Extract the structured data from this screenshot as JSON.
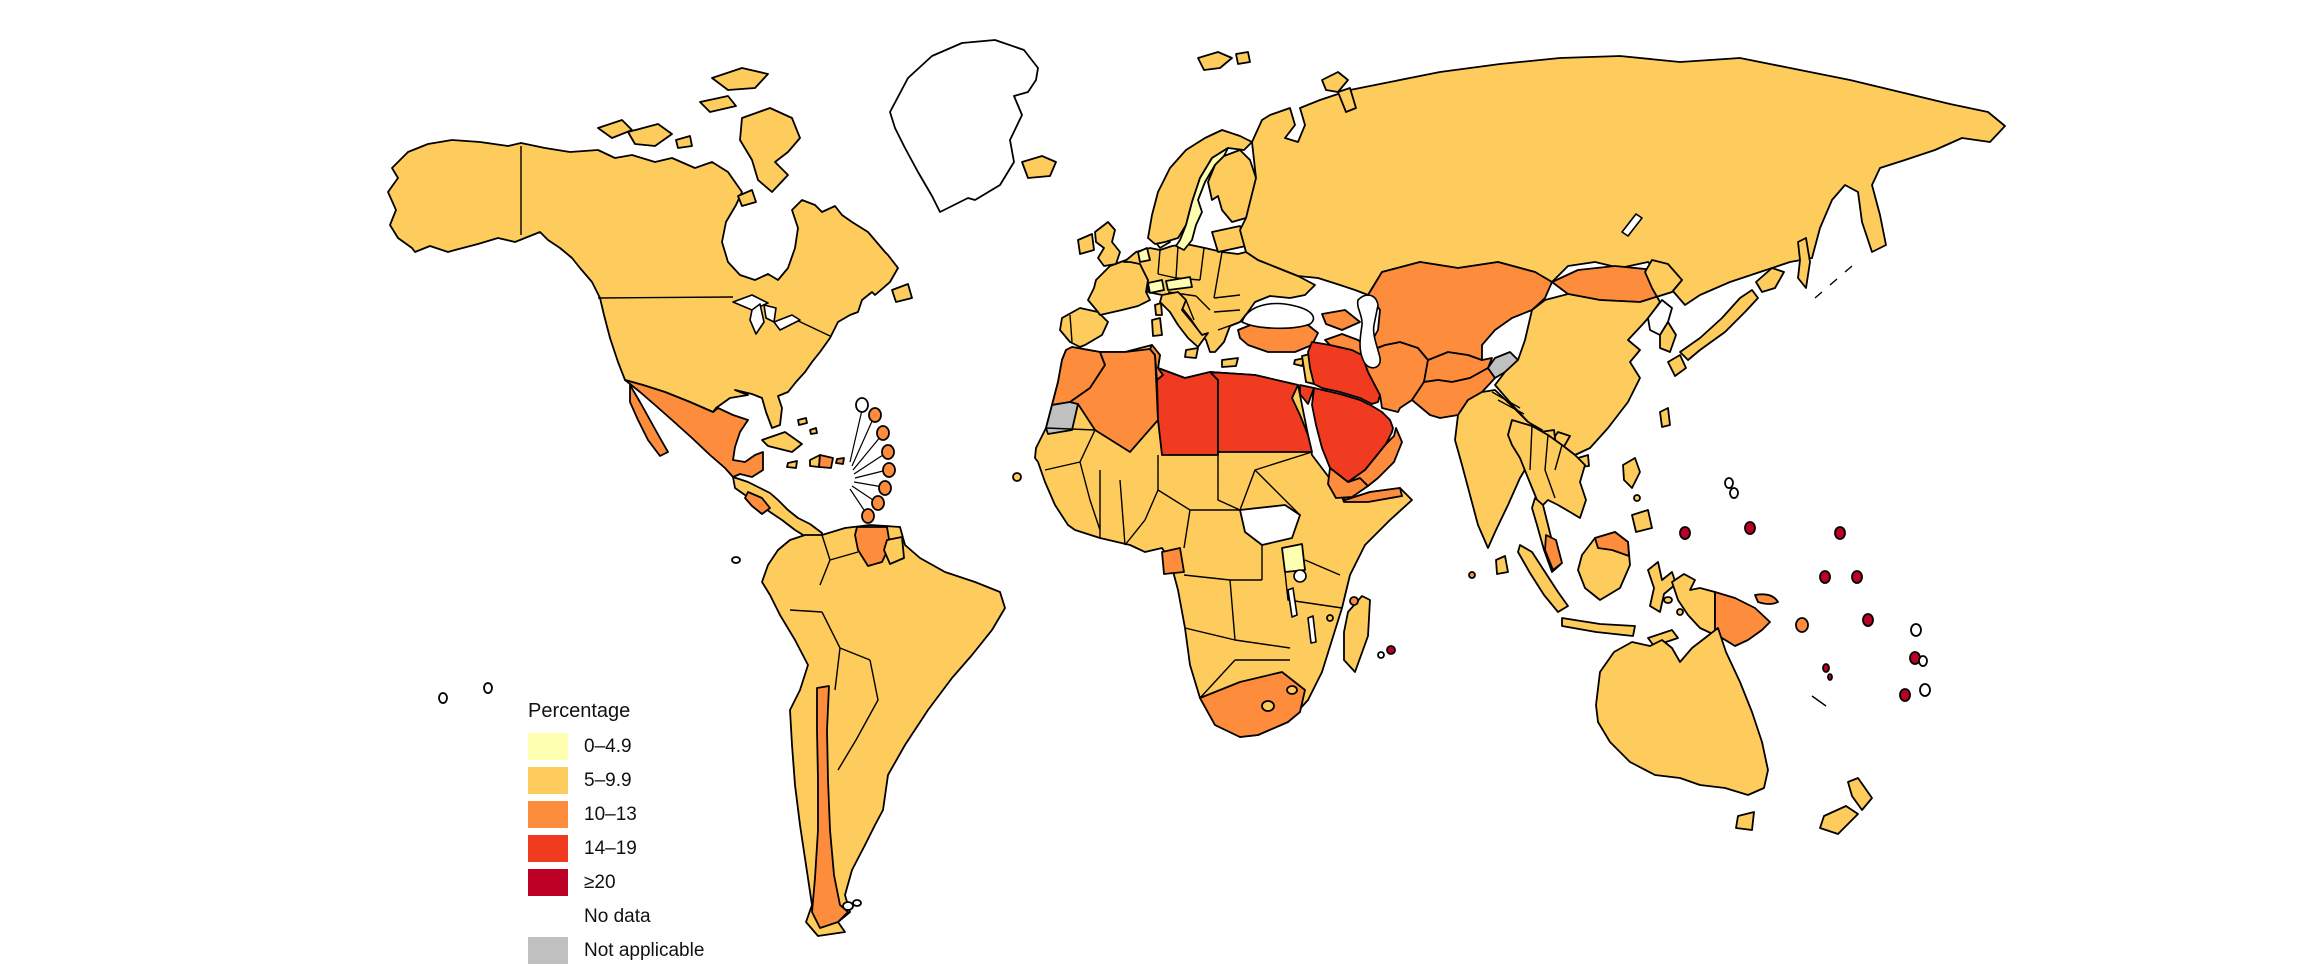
{
  "legend": {
    "title": "Percentage",
    "items": [
      {
        "id": "band0",
        "label": "0–4.9",
        "color": "#FFFFB2"
      },
      {
        "id": "band1",
        "label": "5–9.9",
        "color": "#FECC5C"
      },
      {
        "id": "band2",
        "label": "10–13",
        "color": "#FD8D3C"
      },
      {
        "id": "band3",
        "label": "14–19",
        "color": "#F03B20"
      },
      {
        "id": "band4",
        "label": "≥20",
        "color": "#BD0026"
      },
      {
        "id": "nodata",
        "label": "No data",
        "color": "#FFFFFF"
      },
      {
        "id": "na",
        "label": "Not applicable",
        "color": "#C0C0C0"
      }
    ]
  },
  "map": {
    "ocean_color": "#FFFFFF",
    "border_color": "#000000",
    "palette": {
      "band0": "#FFFFB2",
      "band1": "#FECC5C",
      "band2": "#FD8D3C",
      "band3": "#F03B20",
      "band4": "#BD0026",
      "nodata": "#FFFFFF",
      "na": "#C0C0C0"
    },
    "regions": {
      "north-america": "band1",
      "arctic-islands": "band1",
      "newfoundland": "band1",
      "greenland": "nodata",
      "iceland": "band1",
      "mexico": "band2",
      "baja-california": "band2",
      "central-america": "band1",
      "nicaragua": "band2",
      "cuba": "band1",
      "jamaica": "band1",
      "haiti": "band1",
      "dominican-republic": "band2",
      "puerto-rico": "band2",
      "bahamas": "band1",
      "antilles-white": "nodata",
      "antilles-orange": "band2",
      "trinidad": "band2",
      "south-america": "band1",
      "chile": "band2",
      "guyana-suriname": "band2",
      "french-guiana": "band1",
      "falkland-islands": "nodata",
      "galapagos": "nodata",
      "south-pacific-isolated": "nodata",
      "africa": "band1",
      "morocco": "band2",
      "western-sahara": "na",
      "algeria": "band2",
      "tunisia": "band2",
      "libya": "band3",
      "egypt": "band3",
      "sinai": "band3",
      "south-sudan": "nodata",
      "uganda": "band0",
      "gabon": "band2",
      "djibouti-somaliland": "band2",
      "south-africa": "band2",
      "lesotho": "band1",
      "swaziland": "band1",
      "madagascar": "band1",
      "comoros": "band1",
      "seychelles": "band2",
      "mauritius": "band4",
      "reunion": "nodata",
      "cape-verde": "band1",
      "iberia": "band1",
      "france": "band1",
      "uk": "band1",
      "ireland": "band1",
      "europe-central": "band1",
      "italy": "band1",
      "sicily": "band1",
      "sardinia": "band1",
      "corsica": "band1",
      "crete": "band1",
      "cyprus": "band1",
      "norway": "band1",
      "sweden": "band0",
      "finland": "band1",
      "baltics": "band1",
      "denmark": "band0",
      "netherlands": "band0",
      "switzerland": "band0",
      "austria": "band0",
      "svalbard": "band1",
      "novaya-zemlya": "band1",
      "russia": "band1",
      "sakhalin": "band1",
      "turkey": "band2",
      "caucasus": "band2",
      "levant": "band1",
      "syria-iraq-jordan": "band3",
      "saudi-arabia": "band3",
      "yemen": "band2",
      "oman": "band2",
      "iran": "band2",
      "afghanistan": "band2",
      "pakistan": "band2",
      "kashmir": "na",
      "central-asia": "band2",
      "mongolia": "band2",
      "china": "band1",
      "north-korea": "nodata",
      "south-korea": "band1",
      "japan": "band1",
      "taiwan": "band1",
      "hainan": "band1",
      "india": "band1",
      "bangladesh": "band1",
      "sri-lanka": "band1",
      "maldives": "band2",
      "andaman": "band1",
      "indochina": "band1",
      "malay-peninsula": "band1",
      "malaysia-west": "band2",
      "borneo": "band1",
      "malaysia-east": "band2",
      "sumatra": "band1",
      "java": "band1",
      "sulawesi": "band1",
      "timor": "band1",
      "moluccas": "band1",
      "philippines": "band1",
      "new-guinea-west": "band1",
      "papua-new-guinea": "band2",
      "new-britain": "band2",
      "solomon-islands": "band2",
      "vanuatu": "band4",
      "new-caledonia": "band1",
      "australia": "band1",
      "tasmania": "band1",
      "new-zealand": "band1",
      "micronesia": "band4",
      "marshall-islands": "band4",
      "kiribati": "band4",
      "nauru": "band4",
      "tuvalu": "band4",
      "samoa": "band4",
      "fiji": "band4",
      "tonga": "band4",
      "palau-group": "nodata",
      "pacific-white-1": "nodata",
      "pacific-white-2": "nodata",
      "pacific-white-3": "nodata"
    }
  }
}
